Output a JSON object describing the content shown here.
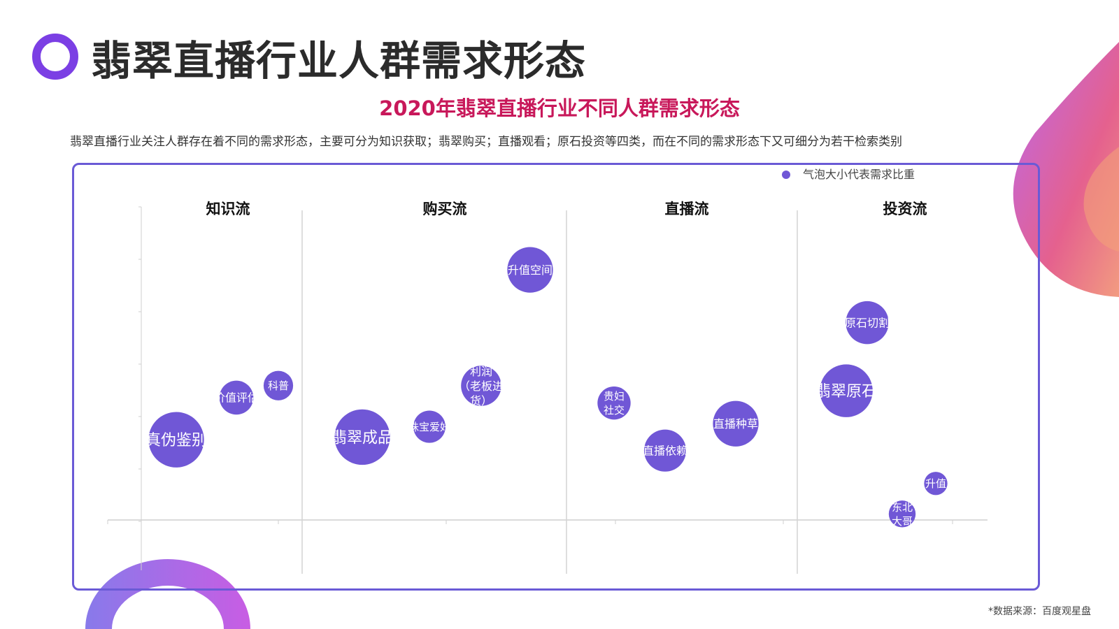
{
  "header": {
    "title": "翡翠直播行业人群需求形态"
  },
  "subtitle": "2020年翡翠直播行业不同人群需求形态",
  "description": "翡翠直播行业关注人群存在着不同的需求形态，主要可分为知识获取；翡翠购买；直播观看；原石投资等四类，而在不同的需求形态下又可细分为若干检索类别",
  "source": "*数据来源：百度观星盘",
  "colors": {
    "bubble": "#7057d6",
    "frame": "#6a5ad6",
    "title_accent": "#c8185a",
    "ring": "#7b3fe4"
  },
  "chart_data": {
    "type": "bubble",
    "legend": {
      "label": "气泡大小代表需求比重",
      "position": "top-right"
    },
    "groups": [
      "知识流",
      "购买流",
      "直播流",
      "投资流"
    ],
    "bubbles": [
      {
        "group": "知识流",
        "label": [
          "真伪鉴别"
        ],
        "rank": 1,
        "level": 0.26,
        "size": 0.62
      },
      {
        "group": "知识流",
        "label": [
          "价值评估"
        ],
        "rank": 2,
        "level": 0.44,
        "size": 0.38
      },
      {
        "group": "知识流",
        "label": [
          "科普"
        ],
        "rank": 3,
        "level": 0.49,
        "size": 0.33
      },
      {
        "group": "购买流",
        "label": [
          "翡翠成品"
        ],
        "rank": 1,
        "level": 0.27,
        "size": 0.62
      },
      {
        "group": "购买流",
        "label": [
          "珠宝爱好"
        ],
        "rank": 2,
        "level": 0.33,
        "size": 0.36
      },
      {
        "group": "购买流",
        "label": [
          "利润",
          "（老板进",
          "货）"
        ],
        "rank": 3,
        "level": 0.48,
        "size": 0.45
      },
      {
        "group": "购买流",
        "label": [
          "升值空间"
        ],
        "rank": 4,
        "level": 0.92,
        "size": 0.51
      },
      {
        "group": "直播流",
        "label": [
          "贵妇",
          "社交"
        ],
        "rank": 1,
        "level": 0.42,
        "size": 0.37
      },
      {
        "group": "直播流",
        "label": [
          "直播依赖"
        ],
        "rank": 2,
        "level": 0.23,
        "size": 0.47
      },
      {
        "group": "直播流",
        "label": [
          "直播种草"
        ],
        "rank": 3,
        "level": 0.33,
        "size": 0.51
      },
      {
        "group": "投资流",
        "label": [
          "翡翠原石"
        ],
        "rank": 1,
        "level": 0.45,
        "size": 0.59
      },
      {
        "group": "投资流",
        "label": [
          "原石切割"
        ],
        "rank": 2,
        "level": 0.72,
        "size": 0.48
      },
      {
        "group": "投资流",
        "label": [
          "东北",
          "大哥"
        ],
        "rank": 3,
        "level": 0.0,
        "size": 0.3
      },
      {
        "group": "投资流",
        "label": [
          "升值"
        ],
        "rank": 4,
        "level": 0.12,
        "size": 0.26
      }
    ]
  }
}
